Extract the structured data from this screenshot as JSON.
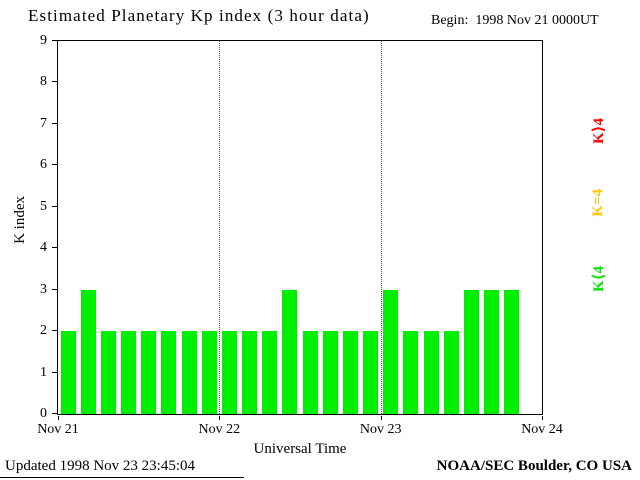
{
  "title": "Estimated Planetary Kp index (3 hour data)",
  "begin_label": "Begin:  1998 Nov 21 0000UT",
  "footer": {
    "updated": "Updated 1998 Nov 23 23:45:04",
    "source": "NOAA/SEC Boulder, CO USA"
  },
  "legend": [
    {
      "label": "K⟩4",
      "color": "#ff0000"
    },
    {
      "label": "K=4",
      "color": "#ffc800"
    },
    {
      "label": "K⟨4",
      "color": "#00e500"
    }
  ],
  "chart_data": {
    "type": "bar",
    "title": "Estimated Planetary Kp index (3 hour data)",
    "xlabel": "Universal Time",
    "ylabel": "K index",
    "ylim": [
      0,
      9
    ],
    "yticks": [
      0,
      1,
      2,
      3,
      4,
      5,
      6,
      7,
      8,
      9
    ],
    "x_day_labels": [
      "Nov 21",
      "Nov 22",
      "Nov 23",
      "Nov 24"
    ],
    "slots_per_day": 8,
    "bar_color_rule": {
      "below_4": "#00ee00",
      "equal_4": "#ffc800",
      "above_4": "#ff0000"
    },
    "bars": [
      {
        "day": "Nov 21",
        "values": [
          2,
          3,
          2,
          2,
          2,
          2,
          2,
          2
        ]
      },
      {
        "day": "Nov 22",
        "values": [
          2,
          2,
          2,
          3,
          2,
          2,
          2,
          2
        ]
      },
      {
        "day": "Nov 23",
        "values": [
          3,
          2,
          2,
          2,
          3,
          3,
          3
        ]
      }
    ],
    "grid": "vertical dotted lines at day boundaries",
    "legend_position": "right, rotated 90deg"
  }
}
